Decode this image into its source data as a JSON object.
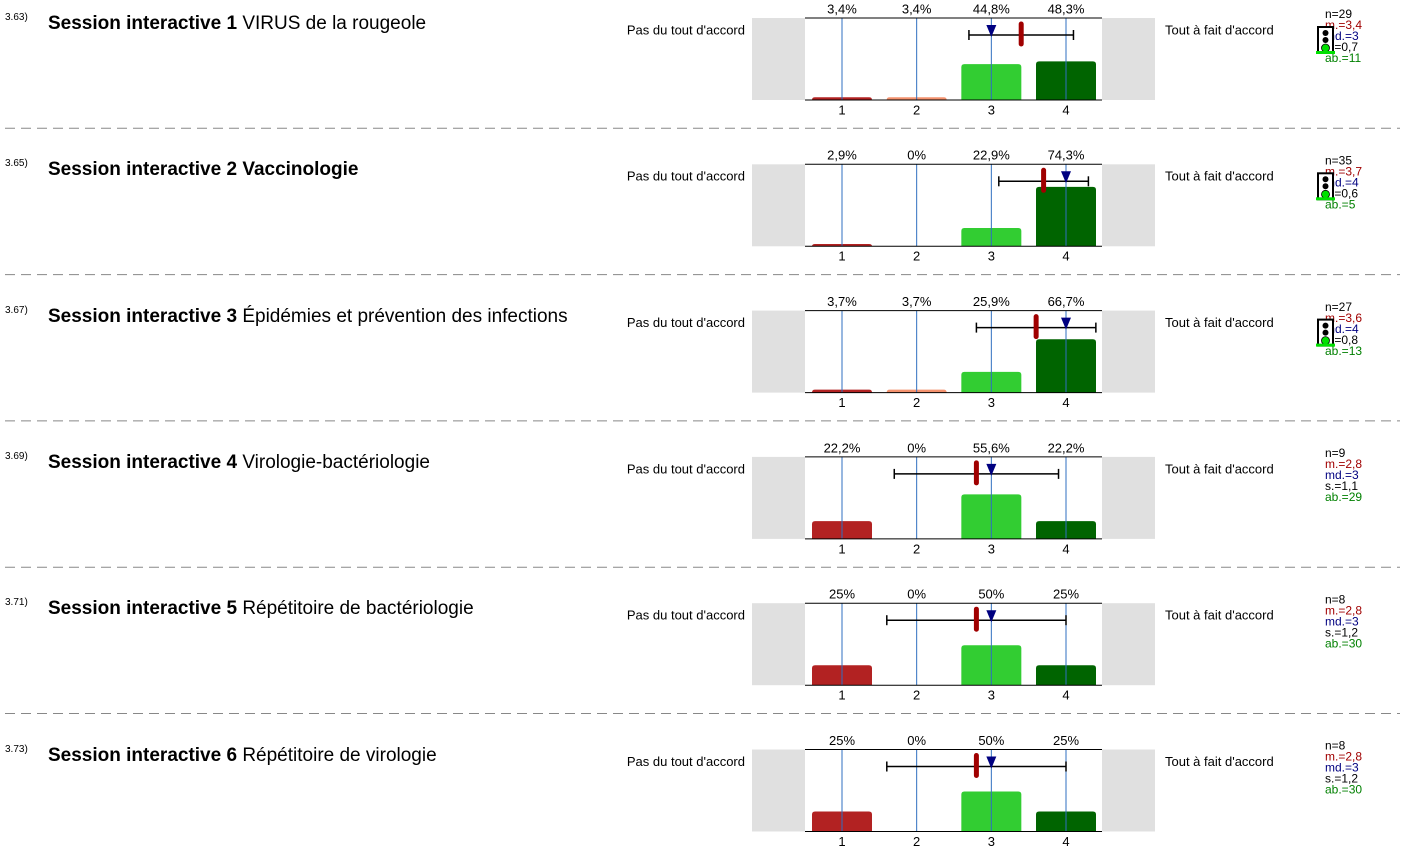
{
  "chart_data": [
    {
      "type": "bar",
      "number": "3.63)",
      "title_parts": [
        {
          "text": "Session interactive 1",
          "bold": true
        },
        {
          "text": "VIRUS de la rougeole",
          "bold": false
        }
      ],
      "left_label": "Pas du tout d'accord",
      "right_label": "Tout à fait d'accord",
      "categories": [
        "1",
        "2",
        "3",
        "4"
      ],
      "values": [
        3.4,
        3.4,
        44.8,
        48.3
      ],
      "value_labels": [
        "3,4%",
        "3,4%",
        "44,8%",
        "48,3%"
      ],
      "colors": [
        "#b22222",
        "#f4926e",
        "#32cd32",
        "#006400"
      ],
      "ylim": [
        0,
        100
      ],
      "xlim": [
        1,
        4
      ],
      "n": {
        "value": 29,
        "label": "n=29"
      },
      "mean": {
        "value": 3.4,
        "label": "m.=3,4"
      },
      "median": {
        "value": 3,
        "label": "md.=3"
      },
      "sd": {
        "value": 0.7,
        "label": "s.=0,7"
      },
      "abstentions": {
        "value": 11,
        "label": "ab.=11"
      },
      "traffic_light": true
    },
    {
      "type": "bar",
      "number": "3.65)",
      "title_parts": [
        {
          "text": "Session interactive 2",
          "bold": true
        },
        {
          "text": "Vaccinologie",
          "bold": true
        }
      ],
      "left_label": "Pas du tout d'accord",
      "right_label": "Tout à fait d'accord",
      "categories": [
        "1",
        "2",
        "3",
        "4"
      ],
      "values": [
        2.9,
        0,
        22.9,
        74.3
      ],
      "value_labels": [
        "2,9%",
        "0%",
        "22,9%",
        "74,3%"
      ],
      "colors": [
        "#b22222",
        "#f4926e",
        "#32cd32",
        "#006400"
      ],
      "ylim": [
        0,
        100
      ],
      "xlim": [
        1,
        4
      ],
      "n": {
        "value": 35,
        "label": "n=35"
      },
      "mean": {
        "value": 3.7,
        "label": "m.=3,7"
      },
      "median": {
        "value": 4,
        "label": "md.=4"
      },
      "sd": {
        "value": 0.6,
        "label": "s.=0,6"
      },
      "abstentions": {
        "value": 5,
        "label": "ab.=5"
      },
      "traffic_light": true
    },
    {
      "type": "bar",
      "number": "3.67)",
      "title_parts": [
        {
          "text": "Session interactive 3",
          "bold": true
        },
        {
          "text": "Épidémies et prévention des infections",
          "bold": false
        }
      ],
      "left_label": "Pas du tout d'accord",
      "right_label": "Tout à fait d'accord",
      "categories": [
        "1",
        "2",
        "3",
        "4"
      ],
      "values": [
        3.7,
        3.7,
        25.9,
        66.7
      ],
      "value_labels": [
        "3,7%",
        "3,7%",
        "25,9%",
        "66,7%"
      ],
      "colors": [
        "#b22222",
        "#f4926e",
        "#32cd32",
        "#006400"
      ],
      "ylim": [
        0,
        100
      ],
      "xlim": [
        1,
        4
      ],
      "n": {
        "value": 27,
        "label": "n=27"
      },
      "mean": {
        "value": 3.6,
        "label": "m.=3,6"
      },
      "median": {
        "value": 4,
        "label": "md.=4"
      },
      "sd": {
        "value": 0.8,
        "label": "s.=0,8"
      },
      "abstentions": {
        "value": 13,
        "label": "ab.=13"
      },
      "traffic_light": true
    },
    {
      "type": "bar",
      "number": "3.69)",
      "title_parts": [
        {
          "text": "Session interactive 4",
          "bold": true
        },
        {
          "text": "Virologie-bactériologie",
          "bold": false
        }
      ],
      "left_label": "Pas du tout d'accord",
      "right_label": "Tout à fait d'accord",
      "categories": [
        "1",
        "2",
        "3",
        "4"
      ],
      "values": [
        22.2,
        0,
        55.6,
        22.2
      ],
      "value_labels": [
        "22,2%",
        "0%",
        "55,6%",
        "22,2%"
      ],
      "colors": [
        "#b22222",
        "#f4926e",
        "#32cd32",
        "#006400"
      ],
      "ylim": [
        0,
        100
      ],
      "xlim": [
        1,
        4
      ],
      "n": {
        "value": 9,
        "label": "n=9"
      },
      "mean": {
        "value": 2.8,
        "label": "m.=2,8"
      },
      "median": {
        "value": 3,
        "label": "md.=3"
      },
      "sd": {
        "value": 1.1,
        "label": "s.=1,1"
      },
      "abstentions": {
        "value": 29,
        "label": "ab.=29"
      },
      "traffic_light": false
    },
    {
      "type": "bar",
      "number": "3.71)",
      "title_parts": [
        {
          "text": "Session interactive 5",
          "bold": true
        },
        {
          "text": "Répétitoire de bactériologie",
          "bold": false
        }
      ],
      "left_label": "Pas du tout d'accord",
      "right_label": "Tout à fait d'accord",
      "categories": [
        "1",
        "2",
        "3",
        "4"
      ],
      "values": [
        25,
        0,
        50,
        25
      ],
      "value_labels": [
        "25%",
        "0%",
        "50%",
        "25%"
      ],
      "colors": [
        "#b22222",
        "#f4926e",
        "#32cd32",
        "#006400"
      ],
      "ylim": [
        0,
        100
      ],
      "xlim": [
        1,
        4
      ],
      "n": {
        "value": 8,
        "label": "n=8"
      },
      "mean": {
        "value": 2.8,
        "label": "m.=2,8"
      },
      "median": {
        "value": 3,
        "label": "md.=3"
      },
      "sd": {
        "value": 1.2,
        "label": "s.=1,2"
      },
      "abstentions": {
        "value": 30,
        "label": "ab.=30"
      },
      "traffic_light": false
    },
    {
      "type": "bar",
      "number": "3.73)",
      "title_parts": [
        {
          "text": "Session interactive 6",
          "bold": true
        },
        {
          "text": "Répétitoire de virologie",
          "bold": false
        }
      ],
      "left_label": "Pas du tout d'accord",
      "right_label": "Tout à fait d'accord",
      "categories": [
        "1",
        "2",
        "3",
        "4"
      ],
      "values": [
        25,
        0,
        50,
        25
      ],
      "value_labels": [
        "25%",
        "0%",
        "50%",
        "25%"
      ],
      "colors": [
        "#b22222",
        "#f4926e",
        "#32cd32",
        "#006400"
      ],
      "ylim": [
        0,
        100
      ],
      "xlim": [
        1,
        4
      ],
      "n": {
        "value": 8,
        "label": "n=8"
      },
      "mean": {
        "value": 2.8,
        "label": "m.=2,8"
      },
      "median": {
        "value": 3,
        "label": "md.=3"
      },
      "sd": {
        "value": 1.2,
        "label": "s.=1,2"
      },
      "abstentions": {
        "value": 30,
        "label": "ab.=30"
      },
      "traffic_light": false
    }
  ]
}
